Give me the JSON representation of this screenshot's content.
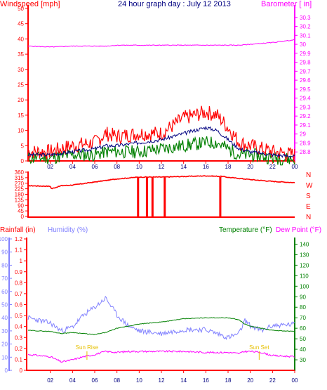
{
  "colors": {
    "wind": "#ff0000",
    "gust_avg": "#000080",
    "wind_green": "#008000",
    "barometer": "#ff00ff",
    "rainfall": "#ff0000",
    "humidity": "#8080ff",
    "temperature": "#008000",
    "dewpoint": "#ff00ff",
    "title": "#000080"
  },
  "chart_data": [
    {
      "type": "line",
      "title": "24 hour graph day : July 12 2013",
      "ylabel_left": "Windspeed [mph]",
      "ylabel_right": "Barometer [ in]",
      "x_ticks": [
        "02",
        "04",
        "06",
        "08",
        "10",
        "12",
        "14",
        "16",
        "18",
        "20",
        "22",
        "00"
      ],
      "ylim_left": [
        0,
        50
      ],
      "yticks_left": [
        "0",
        "5",
        "10",
        "15",
        "20",
        "25",
        "30",
        "35",
        "40",
        "45",
        "50"
      ],
      "ylim_right": [
        28.7,
        30.4
      ],
      "yticks_right": [
        "28.8",
        "28.9",
        "29",
        "29.1",
        "29.2",
        "29.3",
        "29.4",
        "29.5",
        "29.6",
        "29.7",
        "29.8",
        "29.9",
        "30",
        "30.1",
        "30.2",
        "30.3"
      ],
      "x_hours": [
        0,
        2,
        4,
        6,
        7,
        8,
        10,
        12,
        14,
        16,
        17,
        18,
        19,
        20,
        22,
        24
      ],
      "series": [
        {
          "key": "gust",
          "values": [
            3,
            3,
            5,
            6,
            9,
            8,
            9,
            9,
            14,
            16,
            15,
            11,
            6,
            5,
            3,
            2
          ]
        },
        {
          "key": "wind_avg",
          "values": [
            2,
            2,
            3,
            4,
            5,
            5,
            6,
            7,
            9,
            11,
            10,
            7,
            4,
            3,
            2,
            1.5
          ]
        },
        {
          "key": "wind_low",
          "values": [
            1,
            1,
            2,
            2,
            3,
            3,
            3,
            4,
            5,
            6,
            6,
            4,
            2,
            2,
            1,
            0.5
          ]
        },
        {
          "key": "barometer",
          "values": [
            29.98,
            29.97,
            29.98,
            29.98,
            29.98,
            29.99,
            29.99,
            29.99,
            29.99,
            29.99,
            29.99,
            29.99,
            29.99,
            30.0,
            30.02,
            30.05
          ]
        }
      ]
    },
    {
      "type": "line",
      "ylim": [
        0,
        360
      ],
      "yticks": [
        "0",
        "45",
        "90",
        "135",
        "180",
        "225",
        "270",
        "315",
        "360"
      ],
      "compass": [
        "N",
        "W",
        "S",
        "E",
        "N"
      ],
      "x_hours": [
        0,
        2,
        2.1,
        3,
        4,
        6,
        8,
        10,
        12,
        14,
        16,
        17.5,
        18,
        20,
        22,
        24
      ],
      "values": [
        250,
        245,
        225,
        250,
        255,
        280,
        305,
        320,
        320,
        325,
        330,
        325,
        318,
        300,
        285,
        275
      ],
      "drops_hours": [
        9.9,
        10.7,
        11.2,
        12.3,
        17.3
      ],
      "drops_values": [
        0,
        0,
        0,
        0,
        0
      ]
    },
    {
      "type": "line",
      "ylabel_rain": "Rainfall (in)",
      "ylabel_humidity": "Humidity (%)",
      "ylabel_temp": "Temperature (°F)",
      "ylabel_dew": "Dew Point (°F)",
      "x_ticks": [
        "02",
        "04",
        "06",
        "08",
        "10",
        "12",
        "14",
        "16",
        "18",
        "20",
        "22",
        "00"
      ],
      "rain_ylim": [
        0,
        1.2
      ],
      "rain_ticks": [
        "0",
        "0.1",
        "0.2",
        "0.3",
        "0.4",
        "0.5",
        "0.6",
        "0.7",
        "0.8",
        "0.9",
        "1",
        "1.1",
        "1.2"
      ],
      "humidity_ylim": [
        0,
        100
      ],
      "humidity_ticks": [
        "0",
        "10",
        "20",
        "30",
        "40",
        "50",
        "60",
        "70",
        "80",
        "90",
        "100"
      ],
      "temp_ylim": [
        20,
        145
      ],
      "temp_ticks": [
        "30",
        "40",
        "50",
        "60",
        "70",
        "80",
        "90",
        "100",
        "110",
        "120",
        "130",
        "140"
      ],
      "annotations": [
        {
          "text": "Sun Rise",
          "hour": 5.3
        },
        {
          "text": "Sun Set",
          "hour": 20.8
        }
      ],
      "x_hours": [
        0,
        2,
        3,
        4,
        5,
        6,
        7,
        8,
        9,
        10,
        12,
        14,
        16,
        18,
        19,
        19.5,
        20,
        21,
        22,
        24
      ],
      "series": [
        {
          "key": "humidity",
          "values": [
            40,
            36,
            30,
            33,
            42,
            48,
            55,
            42,
            34,
            30,
            28,
            31,
            31,
            25,
            28,
            38,
            34,
            30,
            34,
            35
          ]
        },
        {
          "key": "temperature",
          "values": [
            58,
            57,
            55,
            56,
            55,
            54,
            56,
            60,
            62,
            64,
            66,
            69,
            70,
            70,
            68,
            64,
            62,
            60,
            58,
            57
          ]
        },
        {
          "key": "dewpoint",
          "values": [
            35,
            33,
            28,
            30,
            33,
            35,
            38,
            37,
            38,
            38,
            38,
            38,
            37,
            37,
            36,
            38,
            38,
            37,
            34,
            33
          ]
        },
        {
          "key": "rainfall",
          "values": [
            0,
            0,
            0,
            0,
            0,
            0,
            0,
            0,
            0,
            0,
            0,
            0,
            0,
            0,
            0,
            0,
            0,
            0,
            0,
            0
          ]
        }
      ]
    }
  ]
}
